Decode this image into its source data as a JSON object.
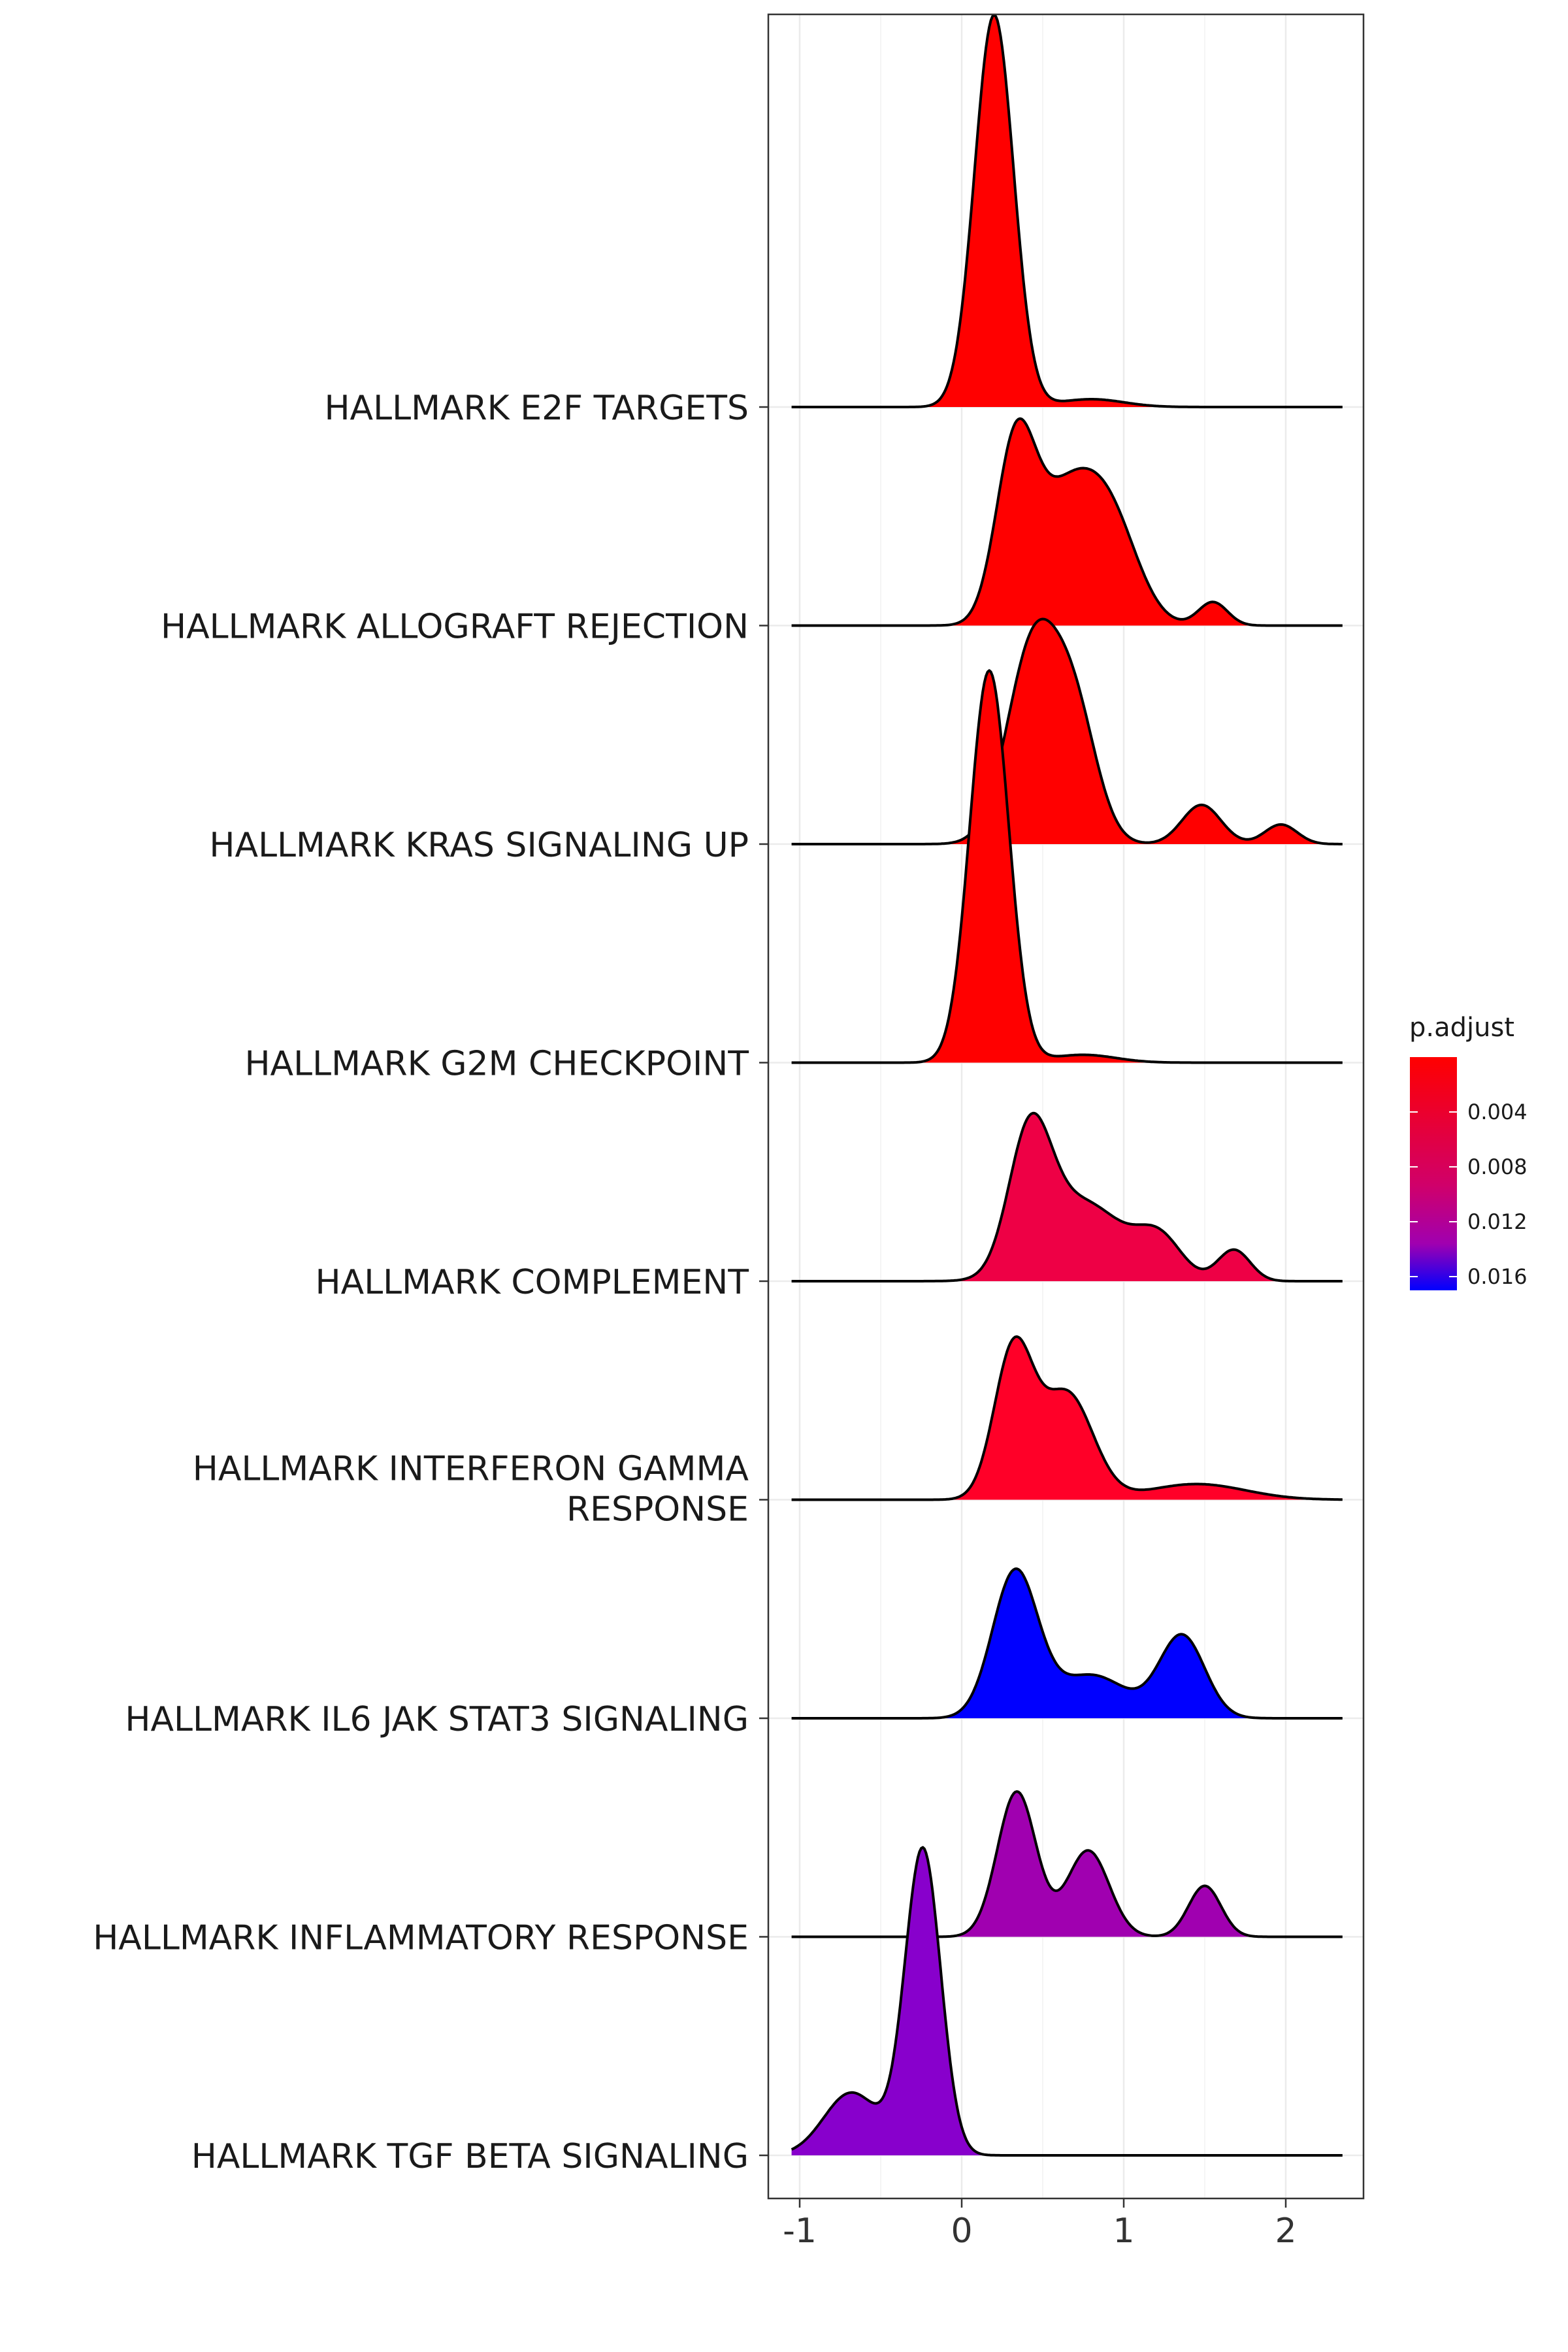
{
  "chart_data": {
    "type": "ridgeline",
    "xlim": [
      -1.2,
      2.5
    ],
    "x_ticks": [
      -1,
      0,
      1,
      2
    ],
    "x_tick_labels": [
      "-1",
      "0",
      "1",
      "2"
    ],
    "grid": true,
    "legend": {
      "title": "p.adjust",
      "placement": "right",
      "range": [
        0.0,
        0.017
      ],
      "ticks": [
        0.004,
        0.008,
        0.012,
        0.016
      ],
      "tick_labels": [
        "0.004",
        "0.008",
        "0.012",
        "0.016"
      ],
      "colors": {
        "low": "#ff0000",
        "high": "#0000ff",
        "mid": "#a000b0"
      }
    },
    "series": [
      {
        "label": "HALLMARK E2F TARGETS",
        "p_adjust": 0.0002,
        "fill": "#ff0000",
        "x_range": [
          -1.05,
          2.35
        ],
        "peaks": [
          {
            "mu": 0.2,
            "sigma": 0.12,
            "h": 1.0
          },
          {
            "mu": 0.8,
            "sigma": 0.2,
            "h": 0.02
          }
        ]
      },
      {
        "label": "HALLMARK ALLOGRAFT REJECTION",
        "p_adjust": 0.0004,
        "fill": "#ff0000",
        "x_range": [
          -1.05,
          2.35
        ],
        "peaks": [
          {
            "mu": 0.33,
            "sigma": 0.12,
            "h": 0.42
          },
          {
            "mu": 0.64,
            "sigma": 0.2,
            "h": 0.32
          },
          {
            "mu": 0.93,
            "sigma": 0.17,
            "h": 0.22
          },
          {
            "mu": 1.55,
            "sigma": 0.09,
            "h": 0.06
          }
        ]
      },
      {
        "label": "HALLMARK KRAS SIGNALING UP",
        "p_adjust": 0.0005,
        "fill": "#ff0000",
        "x_range": [
          -1.05,
          2.35
        ],
        "peaks": [
          {
            "mu": 0.44,
            "sigma": 0.16,
            "h": 0.5
          },
          {
            "mu": 0.7,
            "sigma": 0.14,
            "h": 0.3
          },
          {
            "mu": 1.48,
            "sigma": 0.12,
            "h": 0.1
          },
          {
            "mu": 1.97,
            "sigma": 0.1,
            "h": 0.05
          }
        ]
      },
      {
        "label": "HALLMARK G2M CHECKPOINT",
        "p_adjust": 0.0002,
        "fill": "#ff0000",
        "x_range": [
          -1.05,
          2.35
        ],
        "peaks": [
          {
            "mu": 0.17,
            "sigma": 0.12,
            "h": 1.0
          },
          {
            "mu": 0.75,
            "sigma": 0.2,
            "h": 0.02
          }
        ]
      },
      {
        "label": "HALLMARK COMPLEMENT",
        "p_adjust": 0.003,
        "fill": "#ee0045",
        "x_range": [
          -1.05,
          2.35
        ],
        "peaks": [
          {
            "mu": 0.42,
            "sigma": 0.13,
            "h": 0.34
          },
          {
            "mu": 0.75,
            "sigma": 0.25,
            "h": 0.2
          },
          {
            "mu": 1.22,
            "sigma": 0.14,
            "h": 0.1
          },
          {
            "mu": 1.68,
            "sigma": 0.1,
            "h": 0.08
          }
        ]
      },
      {
        "label": "HALLMARK INTERFERON GAMMA RESPONSE",
        "p_adjust": 0.001,
        "fill": "#ff0028",
        "x_range": [
          -1.05,
          2.35
        ],
        "peaks": [
          {
            "mu": 0.32,
            "sigma": 0.12,
            "h": 0.38
          },
          {
            "mu": 0.65,
            "sigma": 0.16,
            "h": 0.27
          },
          {
            "mu": 1.45,
            "sigma": 0.3,
            "h": 0.04
          }
        ]
      },
      {
        "label": "HALLMARK IL6 JAK STAT3 SIGNALING",
        "p_adjust": 0.017,
        "fill": "#0000ff",
        "x_range": [
          -1.05,
          2.35
        ],
        "peaks": [
          {
            "mu": 0.33,
            "sigma": 0.14,
            "h": 0.37
          },
          {
            "mu": 0.8,
            "sigma": 0.22,
            "h": 0.11
          },
          {
            "mu": 1.36,
            "sigma": 0.14,
            "h": 0.21
          }
        ]
      },
      {
        "label": "HALLMARK INFLAMMATORY RESPONSE",
        "p_adjust": 0.012,
        "fill": "#a000b0",
        "x_range": [
          -1.05,
          2.35
        ],
        "peaks": [
          {
            "mu": 0.34,
            "sigma": 0.12,
            "h": 0.37
          },
          {
            "mu": 0.78,
            "sigma": 0.13,
            "h": 0.22
          },
          {
            "mu": 1.5,
            "sigma": 0.1,
            "h": 0.13
          }
        ]
      },
      {
        "label": "HALLMARK TGF BETA SIGNALING",
        "p_adjust": 0.0135,
        "fill": "#8800cc",
        "x_range": [
          -1.05,
          2.35
        ],
        "peaks": [
          {
            "mu": -0.24,
            "sigma": 0.11,
            "h": 0.78
          },
          {
            "mu": -0.68,
            "sigma": 0.17,
            "h": 0.16
          }
        ]
      }
    ]
  }
}
